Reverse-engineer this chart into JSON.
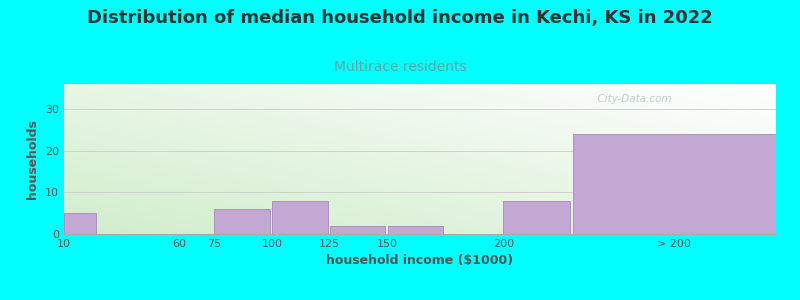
{
  "title": "Distribution of median household income in Kechi, KS in 2022",
  "subtitle": "Multirace residents",
  "xlabel": "household income ($1000)",
  "ylabel": "households",
  "background_color": "#00FFFF",
  "bar_color": "#c4a8d4",
  "bar_edge_color": "#b090c0",
  "bar_lefts": [
    10,
    60,
    75,
    100,
    125,
    150,
    200,
    230
  ],
  "bar_widths": [
    14,
    14,
    24,
    24,
    24,
    24,
    29,
    88
  ],
  "bar_heights": [
    5,
    0,
    6,
    8,
    2,
    2,
    8,
    24
  ],
  "xlim": [
    10,
    318
  ],
  "ylim": [
    0,
    36
  ],
  "yticks": [
    0,
    10,
    20,
    30
  ],
  "xtick_positions": [
    10,
    60,
    75,
    100,
    125,
    150,
    200,
    274
  ],
  "xtick_labels": [
    "10",
    "60",
    "75",
    "100",
    "125",
    "150",
    "200",
    "> 200"
  ],
  "title_fontsize": 13,
  "subtitle_fontsize": 10,
  "axis_label_fontsize": 9,
  "tick_fontsize": 8,
  "watermark": "  City-Data.com"
}
